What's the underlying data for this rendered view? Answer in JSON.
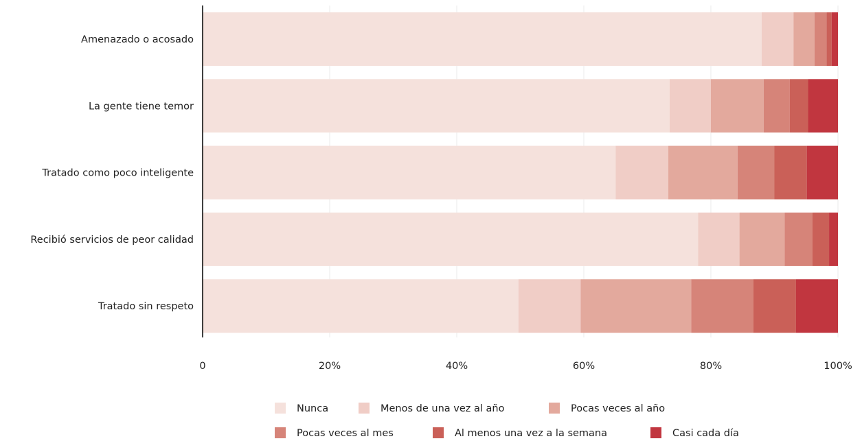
{
  "chart_data": {
    "type": "bar",
    "orientation": "horizontal",
    "stacked": true,
    "categories": [
      "Amenazado o acosado",
      "La gente tiene temor",
      "Tratado como poco inteligente",
      "Recibió servicios de peor calidad",
      "Tratado sin respeto"
    ],
    "series": [
      {
        "name": "Nunca",
        "color": "#f5e1dc",
        "values": [
          88,
          73.5,
          65,
          78,
          49.7
        ]
      },
      {
        "name": "Menos de una vez al año",
        "color": "#f0cdc6",
        "values": [
          5,
          6.5,
          8.3,
          6.5,
          9.8
        ]
      },
      {
        "name": "Pocas veces al año",
        "color": "#e3a99d",
        "values": [
          3.3,
          8.3,
          10.9,
          7.1,
          17.4
        ]
      },
      {
        "name": "Pocas veces al mes",
        "color": "#d68479",
        "values": [
          1.9,
          4.1,
          5.8,
          4.4,
          9.8
        ]
      },
      {
        "name": "Al menos una vez a la semana",
        "color": "#ca6058",
        "values": [
          0.8,
          2.9,
          5.1,
          2.6,
          6.7
        ]
      },
      {
        "name": "Casi cada día",
        "color": "#c1363f",
        "values": [
          1.0,
          4.7,
          4.9,
          1.4,
          6.6
        ]
      }
    ],
    "xlim": [
      0,
      100
    ],
    "xticks": [
      "0",
      "20%",
      "40%",
      "60%",
      "80%",
      "100%"
    ],
    "xlabel": "",
    "ylabel": "",
    "title": "",
    "grid": true,
    "legend_position": "bottom"
  }
}
